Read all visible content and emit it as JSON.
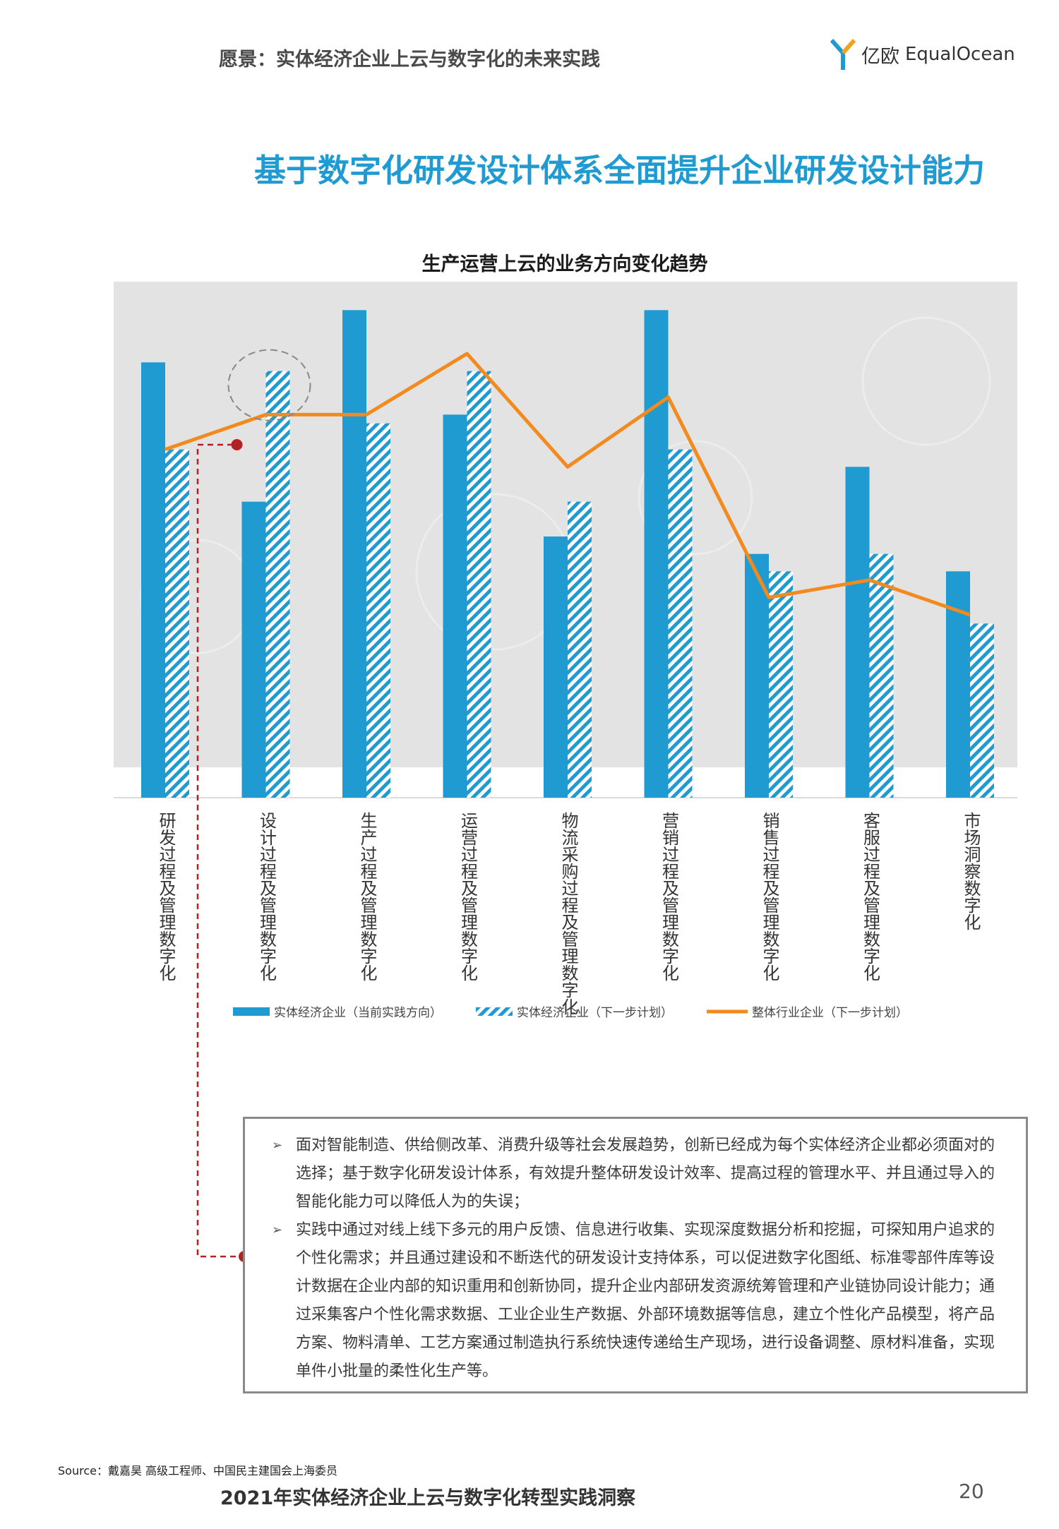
{
  "header": {
    "title": "愿景：实体经济企业上云与数字化的未来实践",
    "logo_cn": "亿欧",
    "logo_en": "EqualOcean"
  },
  "main_title": "基于数字化研发设计体系全面提升企业研发设计能力",
  "chart_data": {
    "type": "bar",
    "title": "生产运营上云的业务方向变化趋势",
    "categories": [
      "研发过程及管理数字化",
      "设计过程及管理数字化",
      "生产过程及管理数字化",
      "运营过程及管理数字化",
      "物流采购过程及管理数字化",
      "营销过程及管理数字化",
      "销售过程及管理数字化",
      "客服过程及管理数字化",
      "市场洞察数字化"
    ],
    "series": [
      {
        "name": "实体经济企业（当前实践方向）",
        "style": "solid",
        "color": "#1f9bd1",
        "values": [
          50,
          34,
          56,
          44,
          30,
          56,
          28,
          38,
          26
        ]
      },
      {
        "name": "实体经济企业（下一步计划）",
        "style": "hatched",
        "color": "#1f9bd1",
        "values": [
          40,
          49,
          43,
          49,
          34,
          40,
          26,
          28,
          20
        ]
      },
      {
        "name": "整体行业企业（下一步计划）",
        "style": "line",
        "color": "#f28a1e",
        "values": [
          40,
          44,
          44,
          51,
          38,
          46,
          23,
          25,
          21
        ]
      }
    ],
    "ylim": [
      0,
      60
    ],
    "grid": false,
    "legend": "bottom",
    "highlight": {
      "category": "设计过程及管理数字化",
      "series": "实体经济企业（下一步计划）"
    }
  },
  "textbox": {
    "arrow": "➢",
    "bullets": [
      "面对智能制造、供给侧改革、消费升级等社会发展趋势，创新已经成为每个实体经济企业都必须面对的选择；基于数字化研发设计体系，有效提升整体研发设计效率、提高过程的管理水平、并且通过导入的智能化能力可以降低人为的失误；",
      "实践中通过对线上线下多元的用户反馈、信息进行收集、实现深度数据分析和挖掘，可探知用户追求的个性化需求；并且通过建设和不断迭代的研发设计支持体系，可以促进数字化图纸、标准零部件库等设计数据在企业内部的知识重用和创新协同，提升企业内部研发资源统筹管理和产业链协同设计能力；通过采集客户个性化需求数据、工业企业生产数据、外部环境数据等信息，建立个性化产品模型，将产品方案、物料清单、工艺方案通过制造执行系统快速传递给生产现场，进行设备调整、原材料准备，实现单件小批量的柔性化生产等。"
    ]
  },
  "footer": {
    "source": "Source：戴嘉昊 高级工程师、中国民主建国会上海委员",
    "title": "2021年实体经济企业上云与数字化转型实践洞察",
    "page": "20"
  }
}
